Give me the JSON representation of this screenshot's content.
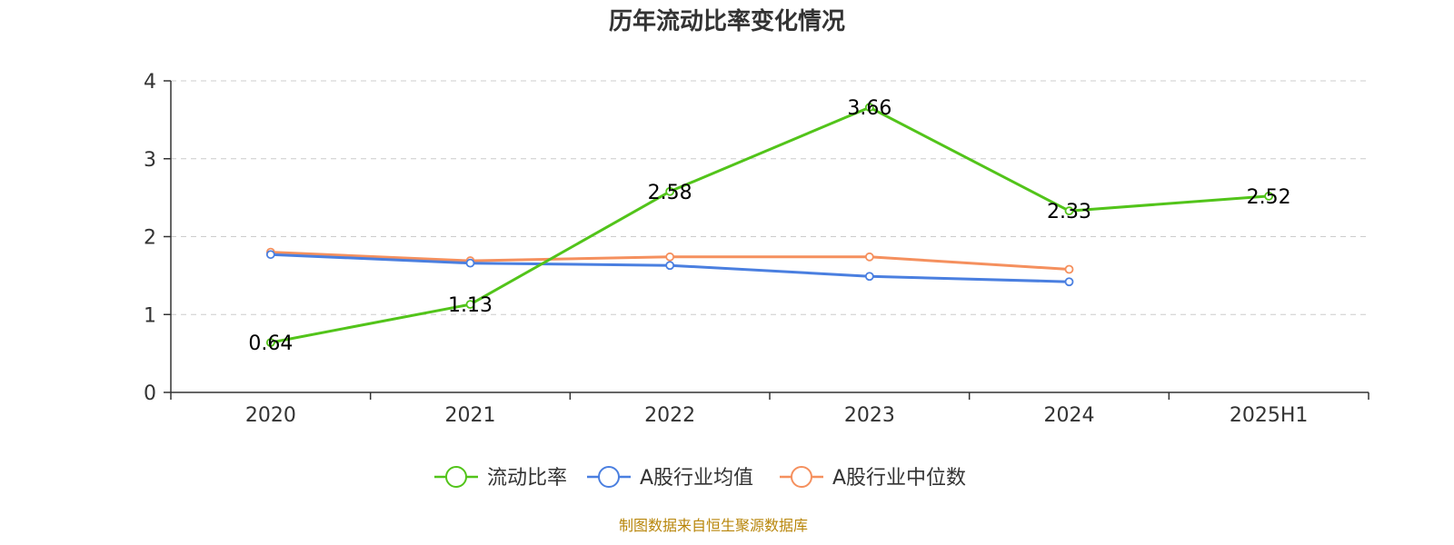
{
  "chart_data": {
    "type": "line",
    "title": "历年流动比率变化情况",
    "categories": [
      "2020",
      "2021",
      "2022",
      "2023",
      "2024",
      "2025H1"
    ],
    "ylim": [
      0,
      4
    ],
    "yticks": [
      "0",
      "1",
      "2",
      "3",
      "4"
    ],
    "grid": true,
    "legend_position": "bottom",
    "series": [
      {
        "name": "流动比率",
        "color": "#52c41a",
        "values": [
          0.64,
          1.13,
          2.58,
          3.66,
          2.33,
          2.52
        ],
        "labels": [
          "0.64",
          "1.13",
          "2.58",
          "3.66",
          "2.33",
          "2.52"
        ]
      },
      {
        "name": "A股行业均值",
        "color": "#4a7fe0",
        "values": [
          1.77,
          1.66,
          1.63,
          1.49,
          1.42,
          null
        ]
      },
      {
        "name": "A股行业中位数",
        "color": "#f5905e",
        "values": [
          1.8,
          1.69,
          1.74,
          1.74,
          1.58,
          null
        ]
      }
    ],
    "source": "制图数据来自恒生聚源数据库"
  }
}
